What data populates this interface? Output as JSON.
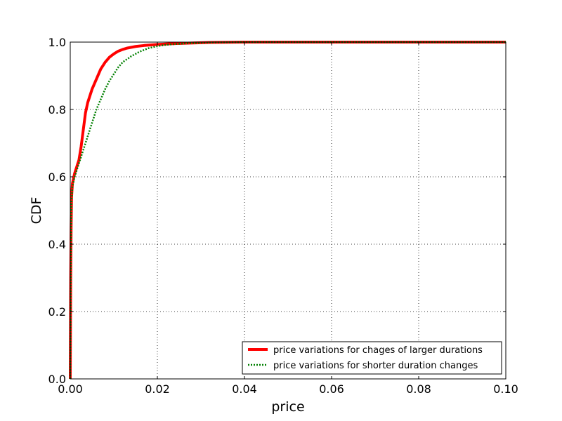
{
  "chart_data": {
    "type": "line",
    "title": "",
    "xlabel": "price",
    "ylabel": "CDF",
    "xlim": [
      0.0,
      0.1
    ],
    "ylim": [
      0.0,
      1.0
    ],
    "grid": true,
    "legend_position": "lower-right",
    "x_ticks": [
      "0.00",
      "0.02",
      "0.04",
      "0.06",
      "0.08",
      "0.10"
    ],
    "y_ticks": [
      "0.0",
      "0.2",
      "0.4",
      "0.6",
      "0.8",
      "1.0"
    ],
    "x_tick_values": [
      0.0,
      0.02,
      0.04,
      0.06,
      0.08,
      0.1
    ],
    "y_tick_values": [
      0.0,
      0.2,
      0.4,
      0.6,
      0.8,
      1.0
    ],
    "series": [
      {
        "name": "price variations for chages of larger durations",
        "color": "#ff0000",
        "style": "solid",
        "x": [
          0.0,
          0.0001,
          0.0002,
          0.0003,
          0.0005,
          0.001,
          0.0015,
          0.002,
          0.0025,
          0.003,
          0.0035,
          0.004,
          0.005,
          0.006,
          0.007,
          0.008,
          0.009,
          0.01,
          0.011,
          0.012,
          0.013,
          0.015,
          0.017,
          0.02,
          0.023,
          0.027,
          0.032,
          0.04,
          0.06,
          0.08,
          0.1
        ],
        "y": [
          0.0,
          0.3,
          0.45,
          0.54,
          0.58,
          0.61,
          0.63,
          0.65,
          0.69,
          0.74,
          0.79,
          0.82,
          0.86,
          0.89,
          0.92,
          0.94,
          0.955,
          0.965,
          0.973,
          0.978,
          0.982,
          0.987,
          0.99,
          0.993,
          0.995,
          0.997,
          0.999,
          1.0,
          1.0,
          1.0,
          1.0
        ]
      },
      {
        "name": "price variations for shorter duration changes",
        "color": "#008000",
        "style": "dotted",
        "x": [
          0.0,
          0.0001,
          0.0002,
          0.0003,
          0.0005,
          0.001,
          0.0015,
          0.002,
          0.003,
          0.004,
          0.005,
          0.006,
          0.007,
          0.008,
          0.009,
          0.01,
          0.011,
          0.012,
          0.014,
          0.016,
          0.018,
          0.02,
          0.022,
          0.025,
          0.028,
          0.032,
          0.04,
          0.06,
          0.08,
          0.1
        ],
        "y": [
          0.0,
          0.3,
          0.45,
          0.53,
          0.57,
          0.6,
          0.62,
          0.64,
          0.68,
          0.72,
          0.76,
          0.8,
          0.83,
          0.86,
          0.885,
          0.905,
          0.925,
          0.94,
          0.958,
          0.972,
          0.982,
          0.988,
          0.992,
          0.995,
          0.997,
          0.999,
          1.0,
          1.0,
          1.0,
          1.0
        ]
      }
    ]
  }
}
